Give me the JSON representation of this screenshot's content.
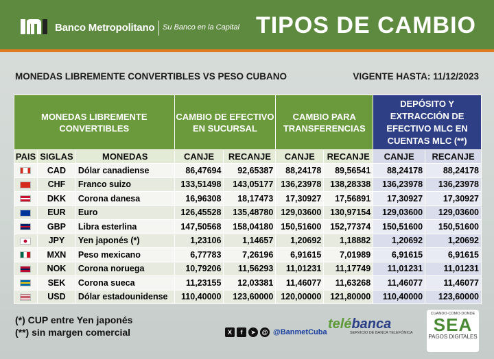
{
  "header": {
    "bank_name": "Banco Metropolitano",
    "slogan": "Su Banco en la Capital",
    "title": "TIPOS DE CAMBIO",
    "logo_icon": "bm-logo-icon"
  },
  "subtitle": {
    "left": "MONEDAS LIBREMENTE CONVERTIBLES VS PESO CUBANO",
    "right": "VIGENTE HASTA: 11/12/2023"
  },
  "table": {
    "group_headers": {
      "monedas": "MONEDAS LIBREMENTE CONVERTIBLES",
      "efectivo": "CAMBIO DE EFECTIVO EN SUCURSAL",
      "transferencias": "CAMBIO PARA TRANSFERENCIAS",
      "mlc": "DEPÓSITO Y EXTRACCIÓN DE EFECTIVO MLC EN CUENTAS MLC (**)"
    },
    "columns": [
      "PAIS",
      "SIGLAS",
      "MONEDAS",
      "CANJE",
      "RECANJE",
      "CANJE",
      "RECANJE",
      "CANJE",
      "RECANJE"
    ],
    "rows": [
      {
        "flag": "canada-flag-icon",
        "code": "CAD",
        "name": "Dólar canadiense",
        "v": [
          "86,47694",
          "92,65387",
          "88,24178",
          "89,56541",
          "88,24178",
          "88,24178"
        ]
      },
      {
        "flag": "switzerland-flag-icon",
        "code": "CHF",
        "name": "Franco suizo",
        "v": [
          "133,51498",
          "143,05177",
          "136,23978",
          "138,28338",
          "136,23978",
          "136,23978"
        ]
      },
      {
        "flag": "denmark-flag-icon",
        "code": "DKK",
        "name": "Corona danesa",
        "v": [
          "16,96308",
          "18,17473",
          "17,30927",
          "17,56891",
          "17,30927",
          "17,30927"
        ]
      },
      {
        "flag": "eu-flag-icon",
        "code": "EUR",
        "name": "Euro",
        "v": [
          "126,45528",
          "135,48780",
          "129,03600",
          "130,97154",
          "129,03600",
          "129,03600"
        ]
      },
      {
        "flag": "uk-flag-icon",
        "code": "GBP",
        "name": "Libra esterlina",
        "v": [
          "147,50568",
          "158,04180",
          "150,51600",
          "152,77374",
          "150,51600",
          "150,51600"
        ]
      },
      {
        "flag": "japan-flag-icon",
        "code": "JPY",
        "name": "Yen japonés (*)",
        "v": [
          "1,23106",
          "1,14657",
          "1,20692",
          "1,18882",
          "1,20692",
          "1,20692"
        ]
      },
      {
        "flag": "mexico-flag-icon",
        "code": "MXN",
        "name": "Peso mexicano",
        "v": [
          "6,77783",
          "7,26196",
          "6,91615",
          "7,01989",
          "6,91615",
          "6,91615"
        ]
      },
      {
        "flag": "norway-flag-icon",
        "code": "NOK",
        "name": "Corona noruega",
        "v": [
          "10,79206",
          "11,56293",
          "11,01231",
          "11,17749",
          "11,01231",
          "11,01231"
        ]
      },
      {
        "flag": "sweden-flag-icon",
        "code": "SEK",
        "name": "Corona sueca",
        "v": [
          "11,23155",
          "12,03381",
          "11,46077",
          "11,63268",
          "11,46077",
          "11,46077"
        ]
      },
      {
        "flag": "usa-flag-icon",
        "code": "USD",
        "name": "Dólar estadounidense",
        "v": [
          "110,40000",
          "123,60000",
          "120,00000",
          "121,80000",
          "110,40000",
          "123,60000"
        ]
      }
    ]
  },
  "notes": {
    "n1": "(*) CUP entre Yen japonés",
    "n2": "(**) sin margen comercial"
  },
  "footer": {
    "social_handle": "@BanmetCuba",
    "telebanca_a": "telé",
    "telebanca_b": "banca",
    "telebanca_sub": "SERVICIO DE BANCA TELEFÓNICA",
    "sea_top": "CUANDO·COMO·DONDE",
    "sea_main": "SEA",
    "sea_sub": "PAGOS DIGITALES"
  }
}
